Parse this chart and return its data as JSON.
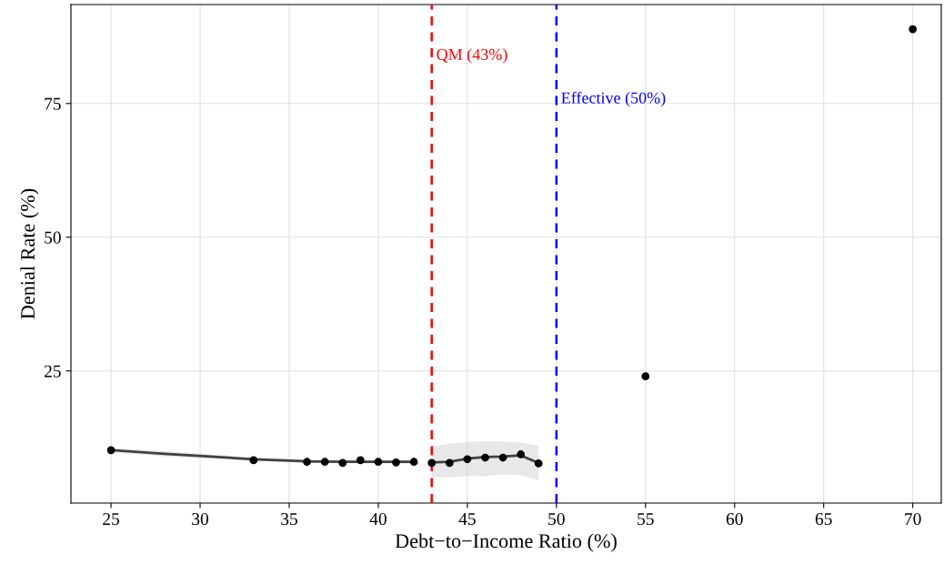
{
  "chart_data": {
    "type": "scatter",
    "xlabel": "Debt−to−Income Ratio (%)",
    "ylabel": "Denial Rate (%)",
    "series": [
      {
        "type": "line",
        "color": "#404040",
        "marker": "none",
        "x": [
          25,
          28,
          31,
          33,
          36,
          38,
          40,
          42
        ],
        "values": [
          10.2,
          9.5,
          8.9,
          8.5,
          8.1,
          8.0,
          8.0,
          8.0
        ],
        "lower": [
          9.8,
          9.0,
          8.5,
          8.2,
          7.8,
          7.7,
          7.7,
          7.6
        ],
        "upper": [
          10.6,
          10.0,
          9.3,
          8.8,
          8.4,
          8.3,
          8.3,
          8.4
        ]
      },
      {
        "type": "line",
        "color": "#404040",
        "marker": "none",
        "x": [
          43,
          44,
          45,
          46,
          47,
          48,
          49
        ],
        "values": [
          7.9,
          8.0,
          8.6,
          8.9,
          9.0,
          9.2,
          7.8
        ],
        "lower": [
          5.2,
          5.0,
          5.4,
          5.3,
          5.6,
          5.5,
          4.6
        ],
        "upper": [
          10.9,
          11.4,
          11.7,
          11.9,
          11.8,
          11.6,
          11.0
        ]
      },
      {
        "color": "#000000",
        "marker": "circle",
        "x": [
          25,
          33,
          36,
          37,
          38,
          39,
          40,
          41,
          42,
          43,
          44,
          45,
          46,
          47,
          48,
          49,
          55,
          70
        ],
        "values": [
          10.2,
          8.3,
          8.0,
          8.0,
          7.8,
          8.3,
          8.0,
          7.9,
          8.0,
          7.8,
          7.8,
          8.5,
          8.8,
          8.8,
          9.4,
          7.7,
          24.0,
          88.9
        ]
      }
    ],
    "xlim": [
      22.75,
      71.6
    ],
    "ylim": [
      0.3,
      93.5
    ],
    "xticks": [
      25,
      30,
      35,
      40,
      45,
      50,
      55,
      60,
      65,
      70
    ],
    "yticks": [
      25,
      50,
      75
    ],
    "grid": true,
    "legend": false,
    "ref_lines": [
      {
        "axis": "x",
        "value": 43,
        "label": "QM (43%)",
        "color": "#ff0000",
        "line_style": "dashed"
      },
      {
        "axis": "x",
        "value": 50,
        "label": "Effective (50%)",
        "color": "#0000ff",
        "line_style": "dashed"
      }
    ]
  }
}
